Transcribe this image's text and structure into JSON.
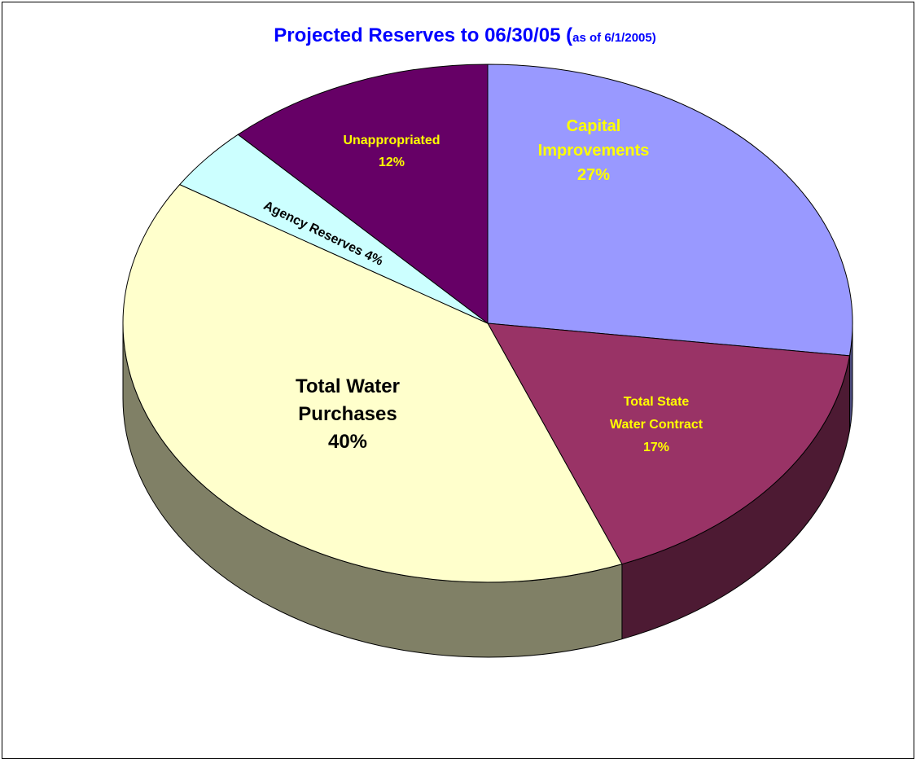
{
  "chart_data": {
    "type": "pie",
    "title": "Projected Reserves to 06/30/05 (",
    "subtitle": "as of 6/1/2005)",
    "three_d": true,
    "start_angle": "12 o'clock, clockwise",
    "legend": "none",
    "slices": [
      {
        "id": "capital-improvements",
        "label_lines": [
          "Capital",
          "Improvements"
        ],
        "value_label": "27%",
        "value": 27,
        "color": "#9999ff",
        "label_color": "#ffff00"
      },
      {
        "id": "total-state-water-contract",
        "label_lines": [
          "Total State",
          "Water Contract"
        ],
        "value_label": "17%",
        "value": 17,
        "color": "#993366",
        "label_color": "#ffff00"
      },
      {
        "id": "total-water-purchases",
        "label_lines": [
          "Total Water",
          "Purchases"
        ],
        "value_label": "40%",
        "value": 40,
        "color": "#ffffcc",
        "label_color": "#000000"
      },
      {
        "id": "agency-reserves",
        "label_lines": [
          "Agency Reserves 4%"
        ],
        "value_label": "",
        "value": 4,
        "color": "#ccffff",
        "label_color": "#000000"
      },
      {
        "id": "unappropriated",
        "label_lines": [
          "Unappropriated"
        ],
        "value_label": "12%",
        "value": 12,
        "color": "#660066",
        "label_color": "#ffff00"
      }
    ]
  },
  "colors": {
    "title": "#0000ff",
    "outline": "#000000",
    "side_shading": "dark"
  }
}
